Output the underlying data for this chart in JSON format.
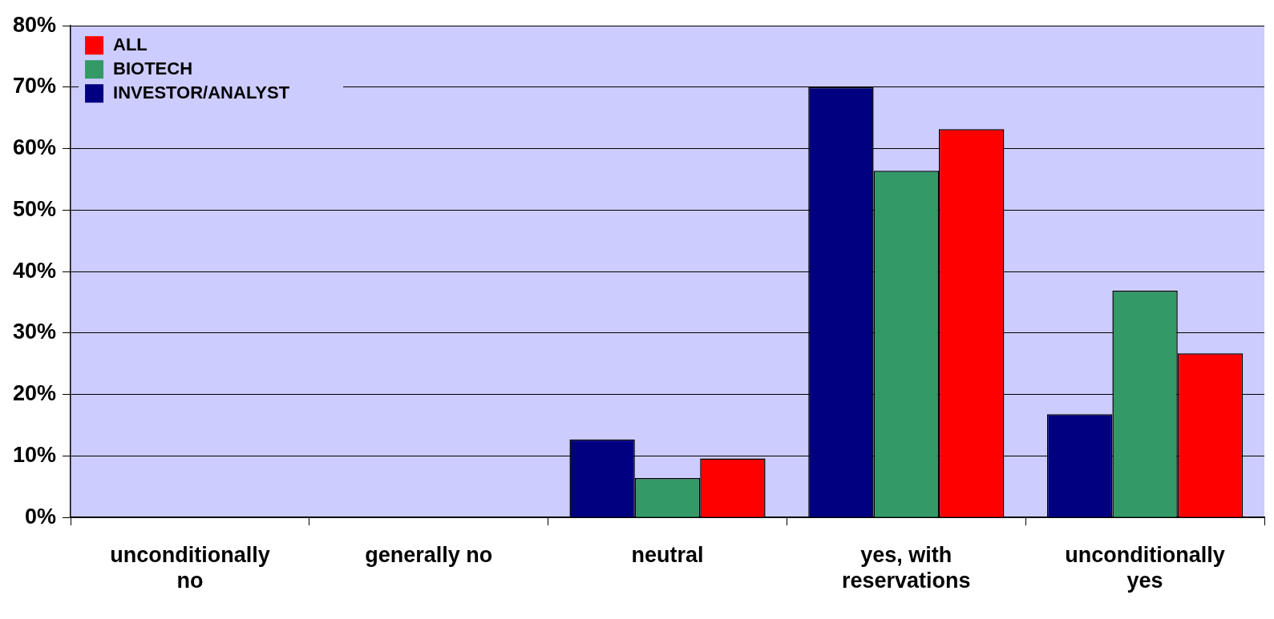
{
  "chart_data": {
    "type": "bar",
    "categories": [
      "unconditionally no",
      "generally no",
      "neutral",
      "yes, with reservations",
      "unconditionally yes"
    ],
    "series": [
      {
        "name": "INVESTOR/ANALYST",
        "color": "#000080",
        "values": [
          0,
          0,
          12.7,
          70,
          16.8
        ]
      },
      {
        "name": "BIOTECH",
        "color": "#339966",
        "values": [
          0,
          0,
          6.4,
          56.4,
          36.9
        ]
      },
      {
        "name": "ALL",
        "color": "#ff0000",
        "values": [
          0,
          0,
          9.6,
          63.2,
          26.7
        ]
      }
    ],
    "ylim": [
      0,
      80
    ],
    "yticks": [
      {
        "value": 0,
        "label": "0%"
      },
      {
        "value": 10,
        "label": "10%"
      },
      {
        "value": 20,
        "label": "20%"
      },
      {
        "value": 30,
        "label": "30%"
      },
      {
        "value": 40,
        "label": "40%"
      },
      {
        "value": 50,
        "label": "50%"
      },
      {
        "value": 60,
        "label": "60%"
      },
      {
        "value": 70,
        "label": "70%"
      },
      {
        "value": 80,
        "label": "80%"
      }
    ],
    "grid": "y",
    "legend": "top left"
  }
}
